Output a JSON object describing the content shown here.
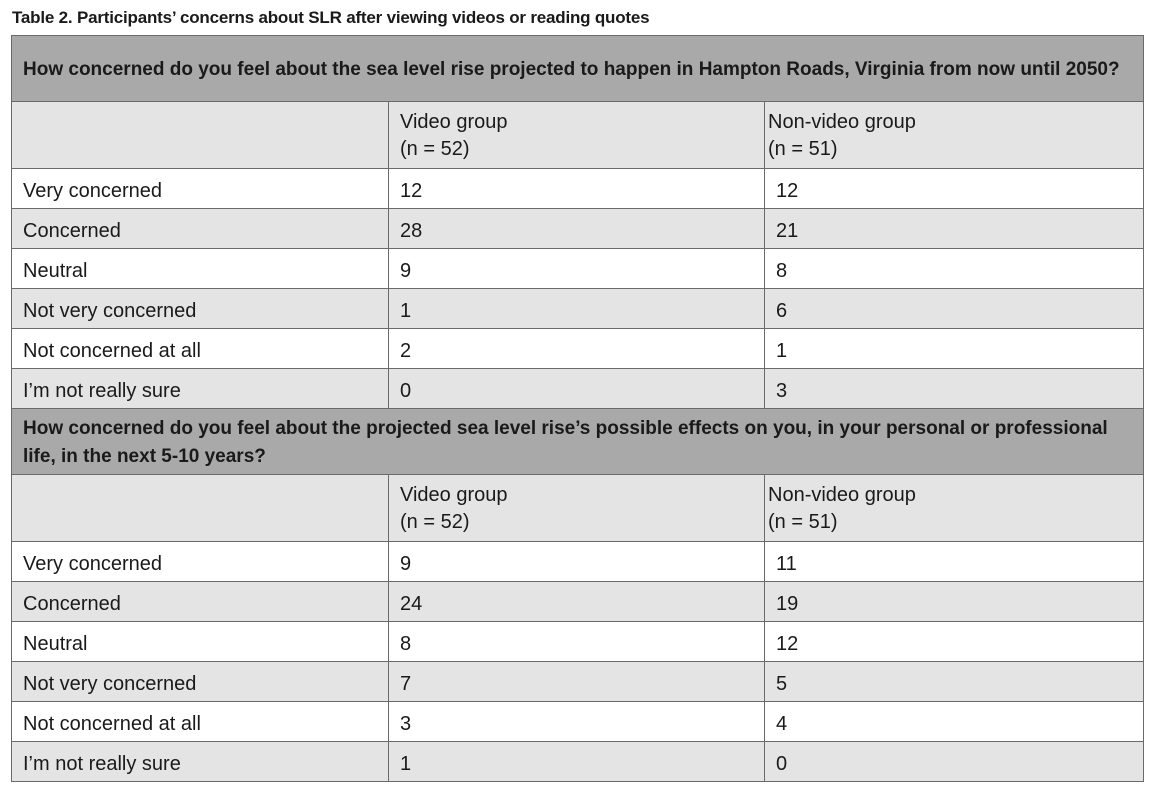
{
  "caption": "Table 2. Participants’ concerns about SLR after viewing videos or reading quotes",
  "sections": [
    {
      "question": "How concerned do you feel about the sea level rise projected to happen in Hampton Roads, Virginia from now until 2050?",
      "groups": [
        {
          "name": "Video group",
          "n": "(n = 52)"
        },
        {
          "name": "Non-video group",
          "n": "(n = 51)"
        }
      ],
      "rows": [
        {
          "label": "Very concerned",
          "video": "12",
          "nonvideo": "12"
        },
        {
          "label": "Concerned",
          "video": "28",
          "nonvideo": "21"
        },
        {
          "label": "Neutral",
          "video": "9",
          "nonvideo": "8"
        },
        {
          "label": "Not very concerned",
          "video": "1",
          "nonvideo": "6"
        },
        {
          "label": "Not concerned at all",
          "video": "2",
          "nonvideo": "1"
        },
        {
          "label": "I’m not really sure",
          "video": "0",
          "nonvideo": "3"
        }
      ]
    },
    {
      "question": "How concerned do you feel about the projected sea level rise’s possible effects on you, in your personal or professional life, in the next 5-10 years?",
      "groups": [
        {
          "name": "Video group",
          "n": "(n = 52)"
        },
        {
          "name": "Non-video group",
          "n": "(n = 51)"
        }
      ],
      "rows": [
        {
          "label": "Very concerned",
          "video": "9",
          "nonvideo": "11"
        },
        {
          "label": "Concerned",
          "video": "24",
          "nonvideo": "19"
        },
        {
          "label": "Neutral",
          "video": "8",
          "nonvideo": "12"
        },
        {
          "label": "Not very concerned",
          "video": "7",
          "nonvideo": "5"
        },
        {
          "label": "Not concerned at all",
          "video": "3",
          "nonvideo": "4"
        },
        {
          "label": "I’m not really sure",
          "video": "1",
          "nonvideo": "0"
        }
      ]
    }
  ]
}
